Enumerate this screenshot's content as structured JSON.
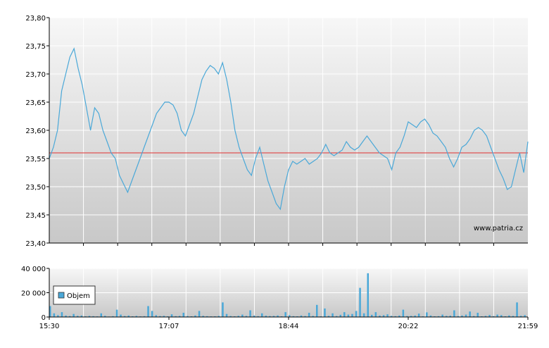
{
  "watermark": "www.patria.cz",
  "colors": {
    "price_line": "#4aa8d8",
    "reference_line": "#e03030",
    "volume_bar": "#4aa8d8",
    "grid": "#ffffff",
    "axis": "#000000",
    "plot_top": "#f7f7f7",
    "plot_bottom": "#c8c8c8"
  },
  "chart_data": [
    {
      "type": "line",
      "title": "",
      "xlabel": "",
      "ylabel": "",
      "ylim": [
        23.4,
        23.8
      ],
      "y_ticks": [
        "23,80",
        "23,75",
        "23,70",
        "23,65",
        "23,60",
        "23,55",
        "23,50",
        "23,45",
        "23,40"
      ],
      "reference_value": 23.56,
      "grid": true,
      "series": [
        {
          "values": [
            23.55,
            23.57,
            23.6,
            23.67,
            23.7,
            23.73,
            23.745,
            23.71,
            23.68,
            23.64,
            23.6,
            23.64,
            23.63,
            23.6,
            23.58,
            23.56,
            23.55,
            23.52,
            23.505,
            23.49,
            23.51,
            23.53,
            23.55,
            23.57,
            23.59,
            23.61,
            23.63,
            23.64,
            23.65,
            23.65,
            23.645,
            23.63,
            23.6,
            23.59,
            23.61,
            23.63,
            23.66,
            23.69,
            23.705,
            23.715,
            23.71,
            23.7,
            23.72,
            23.69,
            23.65,
            23.6,
            23.57,
            23.55,
            23.53,
            23.52,
            23.55,
            23.57,
            23.54,
            23.51,
            23.49,
            23.47,
            23.46,
            23.5,
            23.53,
            23.545,
            23.54,
            23.545,
            23.55,
            23.54,
            23.545,
            23.55,
            23.56,
            23.575,
            23.56,
            23.555,
            23.56,
            23.565,
            23.58,
            23.57,
            23.565,
            23.57,
            23.58,
            23.59,
            23.58,
            23.57,
            23.56,
            23.555,
            23.55,
            23.53,
            23.56,
            23.57,
            23.59,
            23.615,
            23.61,
            23.605,
            23.615,
            23.62,
            23.61,
            23.595,
            23.59,
            23.58,
            23.57,
            23.55,
            23.535,
            23.55,
            23.57,
            23.575,
            23.585,
            23.6,
            23.605,
            23.6,
            23.59,
            23.57,
            23.55,
            23.53,
            23.515,
            23.495,
            23.5,
            23.53,
            23.56,
            23.525,
            23.58
          ]
        }
      ]
    },
    {
      "type": "bar",
      "title": "",
      "xlabel": "",
      "ylabel": "",
      "ylim": [
        0,
        40000
      ],
      "y_ticks": [
        "40 000",
        "20 000",
        "0"
      ],
      "x_ticks": [
        "15:30",
        "17:07",
        "18:44",
        "20:22",
        "21:59"
      ],
      "legend": "top-left",
      "grid": true,
      "series": [
        {
          "name": "Objem",
          "values": [
            9000,
            3000,
            1500,
            4000,
            1200,
            800,
            2500,
            1000,
            1200,
            600,
            900,
            700,
            500,
            3000,
            1000,
            400,
            700,
            6000,
            2000,
            800,
            1200,
            600,
            900,
            500,
            700,
            9000,
            5000,
            1500,
            800,
            1000,
            600,
            2200,
            700,
            900,
            3500,
            800,
            600,
            1300,
            5000,
            1000,
            700,
            500,
            600,
            900,
            12000,
            2500,
            800,
            600,
            1000,
            2000,
            900,
            5500,
            1200,
            700,
            3000,
            1100,
            800,
            900,
            1300,
            600,
            4000,
            1500,
            700,
            600,
            1200,
            800,
            3500,
            900,
            10000,
            600,
            7000,
            1000,
            3000,
            800,
            1800,
            4000,
            2000,
            2500,
            5000,
            24000,
            3000,
            36000,
            1800,
            4000,
            1200,
            1500,
            2200,
            900,
            700,
            1200,
            6000,
            800,
            900,
            1200,
            2800,
            600,
            3800,
            1200,
            600,
            700,
            2000,
            900,
            1100,
            5500,
            800,
            1200,
            2000,
            4500,
            800,
            3500,
            600,
            900,
            1700,
            700,
            2000,
            1500,
            600,
            1300,
            900,
            12000,
            1000,
            1500
          ]
        }
      ]
    }
  ]
}
